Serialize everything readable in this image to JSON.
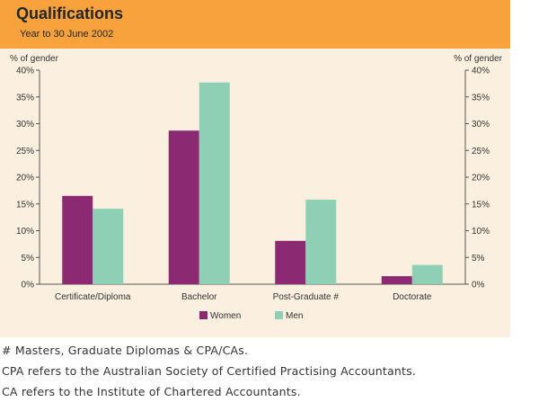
{
  "header": {
    "title": "Qualifications",
    "subtitle": "Year to 30 June 2002"
  },
  "colors": {
    "header_bg": "#f7a23d",
    "panel_bg": "#fbf0df",
    "women": "#8b2a73",
    "men": "#8fcfb6"
  },
  "chart_data": {
    "type": "bar",
    "title": "Qualifications",
    "subtitle": "Year to 30 June 2002",
    "ylabel_left": "% of gender",
    "ylabel_right": "% of gender",
    "ylim": [
      0,
      40
    ],
    "yticks": [
      "0%",
      "5%",
      "10%",
      "15%",
      "20%",
      "25%",
      "30%",
      "35%",
      "40%"
    ],
    "ytick_values": [
      0,
      5,
      10,
      15,
      20,
      25,
      30,
      35,
      40
    ],
    "categories": [
      "Certificate/Diploma",
      "Bachelor",
      "Post-Graduate #",
      "Doctorate"
    ],
    "series": [
      {
        "name": "Women",
        "values": [
          16.5,
          28.7,
          8.1,
          1.5
        ]
      },
      {
        "name": "Men",
        "values": [
          14.1,
          37.7,
          15.8,
          3.6
        ]
      }
    ],
    "legend": "bottom-center",
    "grid": false
  },
  "footnotes": [
    "# Masters, Graduate Diplomas & CPA/CAs.",
    "CPA refers to the Australian Society of Certified Practising Accountants.",
    "CA refers to the Institute of Chartered Accountants."
  ]
}
